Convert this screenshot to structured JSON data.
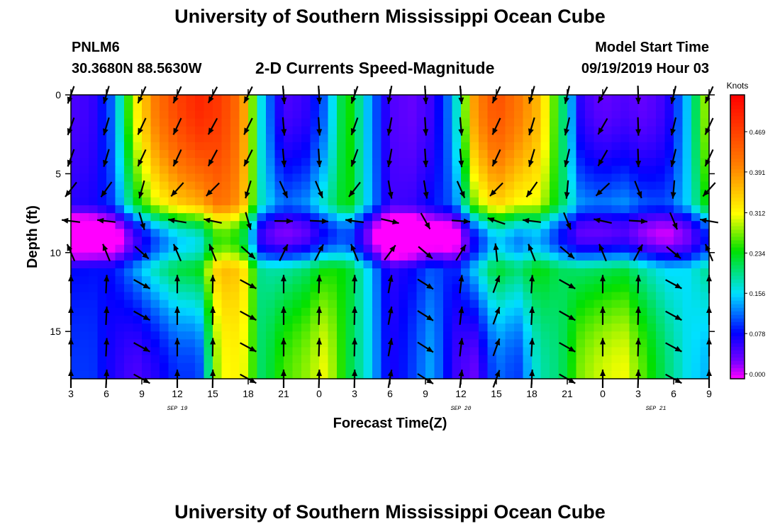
{
  "header": {
    "title": "University of Southern Mississippi Ocean Cube",
    "station_id": "PNLM6",
    "station_coords": "30.3680N 88.5630W",
    "chart_title": "2-D Currents Speed-Magnitude",
    "model_start_label": "Model Start Time",
    "model_start_time": "09/19/2019 Hour 03"
  },
  "footer": {
    "title": "University of Southern Mississippi Ocean Cube"
  },
  "chart_data": {
    "type": "heatmap",
    "title": "2-D Currents Speed-Magnitude",
    "xlabel": "Forecast Time(Z)",
    "ylabel": "Depth (ft)",
    "colorbar_label": "Knots",
    "colorbar_ticks": [
      "0.469",
      "0.391",
      "0.312",
      "0.234",
      "0.156",
      "0.078",
      "0.000"
    ],
    "color_range": [
      0,
      0.52
    ],
    "xlim": [
      0,
      54
    ],
    "ylim": [
      0,
      18
    ],
    "x_tick_labels": [
      "3",
      "6",
      "9",
      "12",
      "15",
      "18",
      "21",
      "0",
      "3",
      "6",
      "9",
      "12",
      "15",
      "18",
      "21",
      "0",
      "3",
      "6",
      "9"
    ],
    "date_labels": [
      {
        "label": "SEP 19",
        "at": 9
      },
      {
        "label": "SEP 20",
        "at": 33
      },
      {
        "label": "SEP 21",
        "at": 49.5
      }
    ],
    "y_ticks": [
      0,
      5,
      10,
      15
    ],
    "surface_speed": [
      0.05,
      0.06,
      0.12,
      0.3,
      0.4,
      0.45,
      0.48,
      0.46,
      0.4,
      0.15,
      0.05,
      0.06,
      0.12,
      0.25,
      0.14,
      0.05,
      0.04,
      0.06,
      0.14,
      0.38,
      0.44,
      0.4,
      0.35,
      0.22,
      0.06,
      0.04,
      0.05,
      0.04,
      0.06,
      0.15,
      0.3
    ],
    "bottom_speed": [
      0.1,
      0.1,
      0.07,
      0.05,
      0.07,
      0.1,
      0.1,
      0.3,
      0.31,
      0.2,
      0.25,
      0.27,
      0.3,
      0.22,
      0.16,
      0.07,
      0.1,
      0.14,
      0.06,
      0.04,
      0.12,
      0.1,
      0.18,
      0.2,
      0.27,
      0.29,
      0.3,
      0.25,
      0.2,
      0.16,
      0.14
    ],
    "surface_direction_deg": [
      200,
      190,
      200,
      205,
      205,
      205,
      205,
      210,
      230,
      160,
      175,
      180,
      175,
      200,
      200,
      190,
      180,
      175,
      170,
      185,
      205,
      200,
      195,
      190,
      200,
      210,
      175,
      180,
      190,
      200,
      205
    ],
    "bottom_direction_deg": [
      0,
      2,
      3,
      0,
      357,
      0,
      3,
      0,
      0,
      355,
      0,
      5,
      0,
      2,
      0,
      10,
      357,
      5,
      0,
      20,
      20,
      5,
      2,
      0,
      358,
      0,
      5,
      0,
      0,
      355,
      0
    ]
  }
}
